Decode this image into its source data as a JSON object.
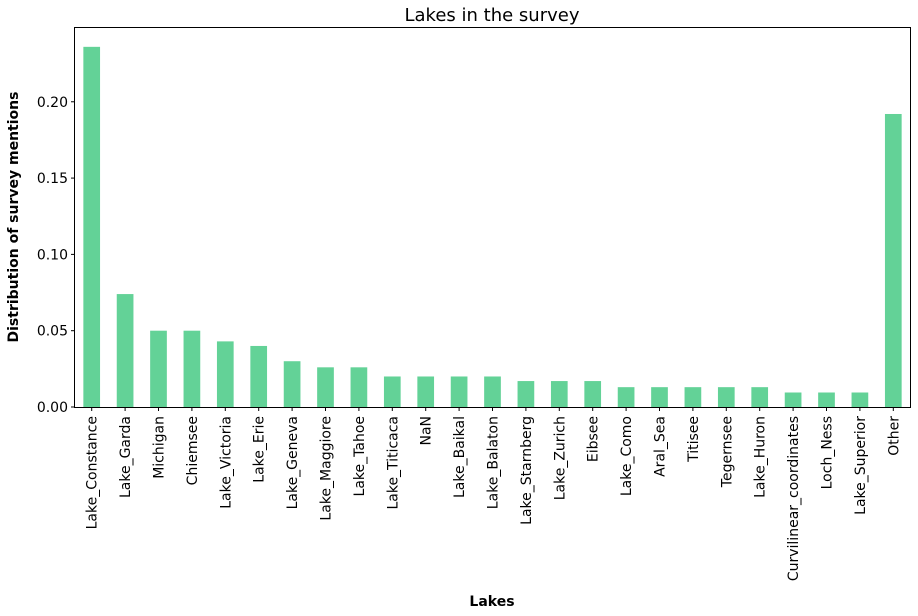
{
  "chart_data": {
    "type": "bar",
    "title": "Lakes in the survey",
    "xlabel": "Lakes",
    "ylabel": "Distribution of survey mentions",
    "ylim": [
      0,
      0.249
    ],
    "yticks": [
      "0.00",
      "0.05",
      "0.10",
      "0.15",
      "0.20"
    ],
    "ytick_values": [
      0,
      0.05,
      0.1,
      0.15,
      0.2
    ],
    "bar_color": "#63d297",
    "grid": false,
    "categories": [
      "Lake_Constance",
      "Lake_Garda",
      "Michigan",
      "Chiemsee",
      "Lake_Victoria",
      "Lake_Erie",
      "Lake_Geneva",
      "Lake_Maggiore",
      "Lake_Tahoe",
      "Lake_Titicaca",
      "NaN",
      "Lake_Baikal",
      "Lake_Balaton",
      "Lake_Starnberg",
      "Lake_Zurich",
      "Eibsee",
      "Lake_Como",
      "Aral_Sea",
      "Titisee",
      "Tegernsee",
      "Lake_Huron",
      "Curvilinear_coordinates",
      "Loch_Ness",
      "Lake_Superior",
      "Other"
    ],
    "values": [
      0.236,
      0.074,
      0.05,
      0.05,
      0.043,
      0.04,
      0.03,
      0.026,
      0.026,
      0.02,
      0.02,
      0.02,
      0.02,
      0.017,
      0.017,
      0.017,
      0.013,
      0.013,
      0.013,
      0.013,
      0.013,
      0.0095,
      0.0095,
      0.0095,
      0.192
    ]
  }
}
